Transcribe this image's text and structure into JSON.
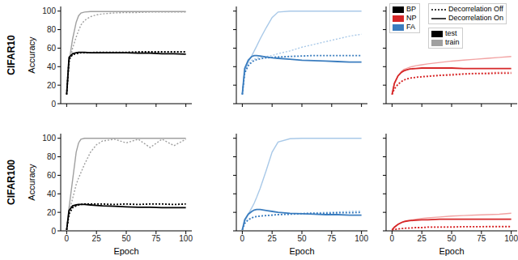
{
  "legend_items": {
    "methods": [
      {
        "name": "BP",
        "color": "#000000"
      },
      {
        "name": "NP",
        "color": "#d62728"
      },
      {
        "name": "FA",
        "color": "#3b7dbf"
      }
    ],
    "styles": [
      {
        "name": "Decorrelation Off",
        "line_style": "dotted"
      },
      {
        "name": "Decorrelation On",
        "line_style": "solid"
      }
    ],
    "sets": [
      {
        "name": "test",
        "color": "#000000"
      },
      {
        "name": "train",
        "color": "#a0a0a0"
      }
    ]
  },
  "chart_data": [
    {
      "type": "line",
      "title": "CIFAR10",
      "ylabel": "Accuracy",
      "tick_labels": "y",
      "x": [
        0,
        2,
        5,
        8,
        10,
        12,
        15,
        20,
        25,
        30,
        40,
        50,
        60,
        70,
        80,
        90,
        100
      ],
      "xlim": [
        -5,
        105
      ],
      "ylim": [
        0,
        105
      ],
      "xticks": [
        0,
        25,
        50,
        75,
        100
      ],
      "yticks": [
        0,
        20,
        40,
        60,
        80,
        100
      ],
      "series": [
        {
          "method": "BP",
          "set": "train",
          "line_style": "dotted",
          "color": "#a0a0a0",
          "values": [
            10,
            42,
            60,
            72,
            79,
            85,
            90,
            94,
            96,
            97,
            98,
            98.5,
            98.5,
            99,
            99,
            99,
            99
          ]
        },
        {
          "method": "BP",
          "set": "train",
          "line_style": "solid",
          "color": "#a0a0a0",
          "values": [
            10,
            45,
            70,
            88,
            95,
            98,
            99,
            99.5,
            99.5,
            99.5,
            99.5,
            99.5,
            99.5,
            99.5,
            99.5,
            99.5,
            99.5
          ]
        },
        {
          "method": "BP",
          "set": "test",
          "line_style": "dotted",
          "color": "#000000",
          "values": [
            10,
            48,
            53,
            54,
            54.5,
            55,
            55,
            55,
            55.5,
            55.5,
            55.5,
            55.5,
            56,
            56,
            56,
            56,
            56
          ]
        },
        {
          "method": "BP",
          "set": "test",
          "line_style": "solid",
          "color": "#000000",
          "values": [
            10,
            50,
            54,
            55,
            55.5,
            55.5,
            55.5,
            55,
            55,
            55,
            55,
            55,
            54.5,
            54.5,
            54,
            54,
            53.5
          ]
        }
      ]
    },
    {
      "type": "line",
      "tick_labels": false,
      "x": [
        0,
        2,
        5,
        8,
        10,
        12,
        15,
        20,
        25,
        30,
        40,
        50,
        60,
        70,
        80,
        90,
        100
      ],
      "xlim": [
        -5,
        105
      ],
      "ylim": [
        0,
        105
      ],
      "xticks": [
        0,
        25,
        50,
        75,
        100
      ],
      "yticks": [
        0,
        20,
        40,
        60,
        80,
        100
      ],
      "series": [
        {
          "method": "FA",
          "set": "train",
          "line_style": "dotted",
          "color": "#a9c9e8",
          "values": [
            10,
            33,
            42,
            47,
            48,
            49,
            50,
            51,
            52,
            54,
            57,
            61,
            64,
            67,
            70,
            73,
            75
          ]
        },
        {
          "method": "FA",
          "set": "train",
          "line_style": "solid",
          "color": "#a9c9e8",
          "values": [
            10,
            35,
            45,
            52,
            57,
            62,
            70,
            82,
            93,
            99,
            100,
            100,
            100,
            100,
            100,
            100,
            100
          ]
        },
        {
          "method": "FA",
          "set": "test",
          "line_style": "dotted",
          "color": "#3b7dbf",
          "values": [
            10,
            33,
            41,
            45,
            46.5,
            47.5,
            48.5,
            49.5,
            50,
            50.5,
            51,
            51.5,
            52,
            52,
            52,
            52,
            52
          ]
        },
        {
          "method": "FA",
          "set": "test",
          "line_style": "solid",
          "color": "#3b7dbf",
          "values": [
            10,
            38,
            47,
            51,
            52,
            52,
            51.5,
            50.5,
            49.5,
            49,
            48,
            47,
            46.5,
            46,
            45.5,
            45,
            45
          ]
        }
      ]
    },
    {
      "type": "line",
      "tick_labels": false,
      "legend": "upper right",
      "x": [
        0,
        2,
        5,
        8,
        10,
        12,
        15,
        20,
        25,
        30,
        40,
        50,
        60,
        70,
        80,
        90,
        100
      ],
      "xlim": [
        -5,
        105
      ],
      "ylim": [
        0,
        105
      ],
      "xticks": [
        0,
        25,
        50,
        75,
        100
      ],
      "yticks": [
        0,
        20,
        40,
        60,
        80,
        100
      ],
      "series": [
        {
          "method": "NP",
          "set": "train",
          "line_style": "dotted",
          "color": "#f2a3a3",
          "values": [
            10,
            16,
            21,
            24,
            25.5,
            26.5,
            27.5,
            28.5,
            29.5,
            30,
            31,
            32,
            32.5,
            33,
            33.5,
            34,
            34
          ]
        },
        {
          "method": "NP",
          "set": "train",
          "line_style": "solid",
          "color": "#f2a3a3",
          "values": [
            10,
            22,
            30,
            35,
            37,
            38,
            39.5,
            41,
            42,
            43,
            44.5,
            46,
            47,
            48,
            49,
            50,
            51
          ]
        },
        {
          "method": "NP",
          "set": "test",
          "line_style": "dotted",
          "color": "#d62728",
          "values": [
            10,
            16,
            21,
            24,
            25.5,
            26.5,
            27.5,
            28.5,
            29,
            29.5,
            30.5,
            31,
            32,
            32.5,
            32.5,
            33,
            33
          ]
        },
        {
          "method": "NP",
          "set": "test",
          "line_style": "solid",
          "color": "#d62728",
          "values": [
            10,
            22,
            30,
            34,
            35.5,
            36.5,
            37.5,
            38,
            38.5,
            38.5,
            38.5,
            38.5,
            38,
            38,
            38,
            38,
            38
          ]
        }
      ]
    },
    {
      "type": "line",
      "title": "CIFAR100",
      "ylabel": "Accuracy",
      "xlabel": "Epoch",
      "tick_labels": true,
      "x": [
        0,
        2,
        5,
        8,
        10,
        12,
        15,
        20,
        25,
        30,
        40,
        50,
        60,
        70,
        80,
        90,
        100
      ],
      "xlim": [
        -5,
        105
      ],
      "ylim": [
        0,
        105
      ],
      "xticks": [
        0,
        25,
        50,
        75,
        100
      ],
      "yticks": [
        0,
        20,
        40,
        60,
        80,
        100
      ],
      "series": [
        {
          "method": "BP",
          "set": "train",
          "line_style": "dotted",
          "color": "#a0a0a0",
          "values": [
            1,
            20,
            35,
            50,
            57,
            63,
            72,
            85,
            93,
            97,
            99,
            95,
            99,
            90,
            99,
            92,
            99
          ]
        },
        {
          "method": "BP",
          "set": "train",
          "line_style": "solid",
          "color": "#a0a0a0",
          "values": [
            1,
            25,
            55,
            85,
            95,
            99,
            100,
            100,
            100,
            100,
            100,
            100,
            100,
            100,
            100,
            100,
            100
          ]
        },
        {
          "method": "BP",
          "set": "test",
          "line_style": "dotted",
          "color": "#000000",
          "values": [
            1,
            18,
            25,
            27,
            28,
            28.5,
            29,
            29,
            29,
            29,
            28.5,
            29,
            28.5,
            29,
            29,
            28.5,
            29
          ]
        },
        {
          "method": "BP",
          "set": "test",
          "line_style": "solid",
          "color": "#000000",
          "values": [
            1,
            22,
            27,
            28,
            28.5,
            28.5,
            28.5,
            28,
            27.5,
            27,
            26.5,
            26,
            25.5,
            25.5,
            25,
            25,
            25
          ]
        }
      ]
    },
    {
      "type": "line",
      "xlabel": "Epoch",
      "tick_labels": "x",
      "x": [
        0,
        2,
        5,
        8,
        10,
        12,
        15,
        20,
        25,
        30,
        40,
        50,
        60,
        70,
        80,
        90,
        100
      ],
      "xlim": [
        -5,
        105
      ],
      "ylim": [
        0,
        105
      ],
      "xticks": [
        0,
        25,
        50,
        75,
        100
      ],
      "yticks": [
        0,
        20,
        40,
        60,
        80,
        100
      ],
      "series": [
        {
          "method": "FA",
          "set": "train",
          "line_style": "dotted",
          "color": "#a9c9e8",
          "values": [
            1,
            8,
            12,
            14,
            15,
            15.5,
            16,
            16.5,
            17,
            17.5,
            18,
            19,
            19.5,
            20,
            20.5,
            21,
            21.5
          ]
        },
        {
          "method": "FA",
          "set": "train",
          "line_style": "solid",
          "color": "#a9c9e8",
          "values": [
            1,
            10,
            18,
            25,
            30,
            36,
            46,
            65,
            85,
            96,
            99.5,
            100,
            100,
            100,
            100,
            100,
            100
          ]
        },
        {
          "method": "FA",
          "set": "test",
          "line_style": "dotted",
          "color": "#3b7dbf",
          "values": [
            1,
            8,
            12,
            14,
            15,
            15.5,
            16,
            16.5,
            17,
            17.5,
            18,
            18.5,
            19,
            19,
            19.5,
            19.5,
            20
          ]
        },
        {
          "method": "FA",
          "set": "test",
          "line_style": "solid",
          "color": "#3b7dbf",
          "values": [
            1,
            12,
            18,
            21,
            22.5,
            23,
            23,
            22,
            21,
            20,
            19,
            18.5,
            18,
            17.5,
            17.5,
            17,
            17
          ]
        }
      ]
    },
    {
      "type": "line",
      "xlabel": "Epoch",
      "tick_labels": "x",
      "x": [
        0,
        2,
        5,
        8,
        10,
        12,
        15,
        20,
        25,
        30,
        40,
        50,
        60,
        70,
        80,
        90,
        100
      ],
      "xlim": [
        -5,
        105
      ],
      "ylim": [
        0,
        105
      ],
      "xticks": [
        0,
        25,
        50,
        75,
        100
      ],
      "yticks": [
        0,
        20,
        40,
        60,
        80,
        100
      ],
      "series": [
        {
          "method": "NP",
          "set": "train",
          "line_style": "dotted",
          "color": "#f2a3a3",
          "values": [
            1,
            1.5,
            2,
            2.5,
            2.5,
            3,
            3,
            3.5,
            3.5,
            4,
            4,
            4.5,
            4.5,
            4.5,
            5,
            5,
            5
          ]
        },
        {
          "method": "NP",
          "set": "train",
          "line_style": "solid",
          "color": "#f2a3a3",
          "values": [
            1,
            4,
            7,
            9,
            10,
            10.5,
            11.5,
            12.5,
            13.5,
            14,
            15,
            16,
            16.5,
            17,
            17.5,
            18,
            19
          ]
        },
        {
          "method": "NP",
          "set": "test",
          "line_style": "dotted",
          "color": "#d62728",
          "values": [
            1,
            1.5,
            2,
            2.5,
            2.5,
            3,
            3,
            3.5,
            3.5,
            4,
            4,
            4,
            4.5,
            4.5,
            4.5,
            4.5,
            4.5
          ]
        },
        {
          "method": "NP",
          "set": "test",
          "line_style": "solid",
          "color": "#d62728",
          "values": [
            1,
            4,
            7,
            9,
            10,
            10.5,
            11,
            11.5,
            12,
            12,
            12.5,
            12.5,
            12.5,
            12.5,
            12.5,
            12.5,
            12.5
          ]
        }
      ]
    }
  ]
}
